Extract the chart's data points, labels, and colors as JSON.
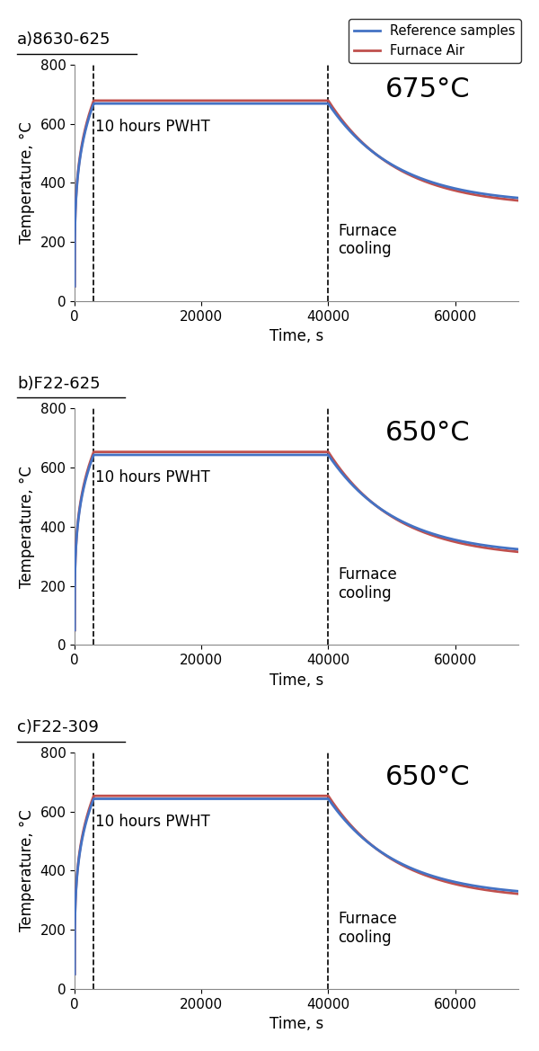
{
  "panels": [
    {
      "title": "a)8630-625",
      "temp_hold_blue": 668,
      "temp_hold_red": 678,
      "cool_end_temp_blue": 328,
      "cool_end_temp_red": 318,
      "temp_annotation": "675°C",
      "show_legend": true
    },
    {
      "title": "b)F22-625",
      "temp_hold_blue": 643,
      "temp_hold_red": 653,
      "cool_end_temp_blue": 303,
      "cool_end_temp_red": 293,
      "temp_annotation": "650°C",
      "show_legend": false
    },
    {
      "title": "c)F22-309",
      "temp_hold_blue": 643,
      "temp_hold_red": 653,
      "cool_end_temp_blue": 310,
      "cool_end_temp_red": 300,
      "temp_annotation": "650°C",
      "show_legend": false
    }
  ],
  "xlabel": "Time, s",
  "ylabel": "Temperature, °C",
  "xlim": [
    0,
    70000
  ],
  "ylim": [
    0,
    800
  ],
  "xticks": [
    0,
    20000,
    40000,
    60000
  ],
  "yticks": [
    0,
    200,
    400,
    600,
    800
  ],
  "dashed_x1": 3000,
  "dashed_x2": 40000,
  "ramp_start_temp": 50,
  "ramp_end_x": 3000,
  "hold_end_x": 40000,
  "cool_end_x": 70000,
  "color_blue": "#4472C4",
  "color_red": "#C0504D",
  "line_width": 2.0,
  "pwht_label": "10 hours PWHT",
  "cooling_label": "Furnace\ncooling",
  "legend_labels": [
    "Reference samples",
    "Furnace Air"
  ],
  "title_fontsize": 13,
  "label_fontsize": 12,
  "annotation_fontsize": 22,
  "pwht_fontsize": 12,
  "cooling_fontsize": 12,
  "axis_color": "#888888"
}
